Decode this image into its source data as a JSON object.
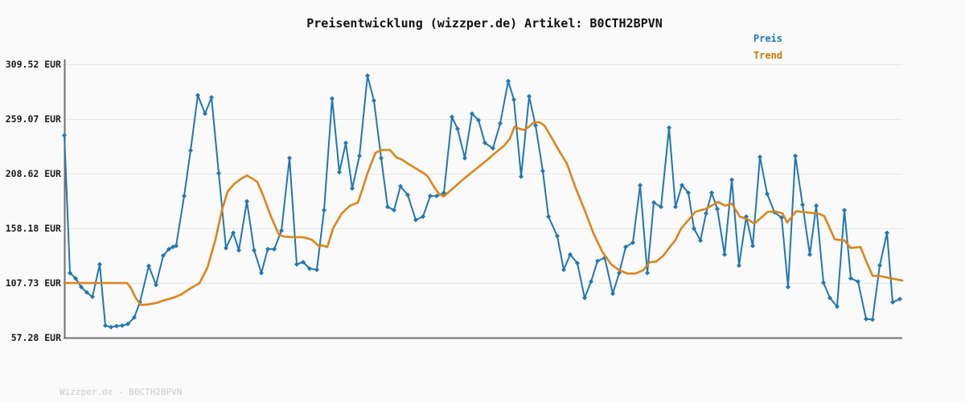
{
  "title": "Preisentwicklung (wizzper.de) Artikel: B0CTH2BPVN",
  "legend": {
    "preis_label": "Preis",
    "trend_label": "Trend"
  },
  "watermark": "Wizzper.de - B0CTH2BPVN",
  "colors": {
    "preis_line": "#1f77b4",
    "trend_line": "#df8418",
    "legend_preis_text": "#1778be",
    "legend_trend_text": "#c87800",
    "axis": "#707070",
    "grid": "#e6e6e6",
    "tick_label": "#1a1a1a",
    "background": "#fafafa",
    "watermark_text": "#cccccc"
  },
  "y_axis": {
    "tick_labels": [
      "309.52 EUR",
      "259.07 EUR",
      "208.62 EUR",
      "158.18 EUR",
      "107.73 EUR",
      "57.28 EUR"
    ],
    "tick_values": [
      309.52,
      259.07,
      208.62,
      158.18,
      107.73,
      57.28
    ]
  },
  "chart_data": {
    "type": "line",
    "title": "Preisentwicklung (wizzper.de) Artikel: B0CTH2BPVN",
    "xlabel": "",
    "ylabel": "",
    "ylim": [
      57.28,
      309.52
    ],
    "y_ticks": [
      309.52,
      259.07,
      208.62,
      158.18,
      107.73,
      57.28
    ],
    "grid": "horizontal",
    "legend_position": "outside-top-right",
    "x_note": "no x tick labels shown; x = pixel offset along axis",
    "series": [
      {
        "name": "Preis",
        "color": "#1f77b4",
        "marker": "diamond",
        "unit": "EUR",
        "points": [
          [
            0,
            244
          ],
          [
            7,
            117
          ],
          [
            14,
            112
          ],
          [
            21,
            104
          ],
          [
            28,
            99
          ],
          [
            35,
            95
          ],
          [
            44,
            125
          ],
          [
            51,
            68.5
          ],
          [
            58,
            67
          ],
          [
            65,
            68
          ],
          [
            72,
            68.5
          ],
          [
            79,
            70
          ],
          [
            87,
            76
          ],
          [
            94,
            90
          ],
          [
            105,
            123.5
          ],
          [
            114,
            106
          ],
          [
            123,
            133
          ],
          [
            130,
            139
          ],
          [
            135,
            141
          ],
          [
            139,
            142
          ],
          [
            149,
            188
          ],
          [
            157,
            230
          ],
          [
            166,
            281
          ],
          [
            175,
            264
          ],
          [
            183,
            279
          ],
          [
            192,
            209
          ],
          [
            201,
            140
          ],
          [
            210,
            154
          ],
          [
            217,
            138
          ],
          [
            227,
            183
          ],
          [
            236,
            138
          ],
          [
            245,
            117
          ],
          [
            253,
            139
          ],
          [
            261,
            139
          ],
          [
            270,
            156
          ],
          [
            280,
            223
          ],
          [
            289,
            125
          ],
          [
            297,
            127
          ],
          [
            305,
            121
          ],
          [
            314,
            120
          ],
          [
            323,
            175
          ],
          [
            333,
            278
          ],
          [
            342,
            210
          ],
          [
            350,
            237
          ],
          [
            358,
            195
          ],
          [
            367,
            225
          ],
          [
            377,
            299
          ],
          [
            385,
            276
          ],
          [
            394,
            223
          ],
          [
            402,
            178
          ],
          [
            410,
            175
          ],
          [
            418,
            197
          ],
          [
            427,
            189
          ],
          [
            437,
            166
          ],
          [
            446,
            169
          ],
          [
            455,
            188
          ],
          [
            463,
            188
          ],
          [
            472,
            191
          ],
          [
            482,
            261
          ],
          [
            489,
            250
          ],
          [
            498,
            223
          ],
          [
            507,
            264
          ],
          [
            515,
            258
          ],
          [
            523,
            237
          ],
          [
            533,
            232
          ],
          [
            542,
            255
          ],
          [
            552,
            294
          ],
          [
            559,
            277
          ],
          [
            568,
            206
          ],
          [
            578,
            280
          ],
          [
            586,
            253
          ],
          [
            595,
            211
          ],
          [
            602,
            169
          ],
          [
            613,
            151
          ],
          [
            621,
            120
          ],
          [
            629,
            134
          ],
          [
            638,
            126
          ],
          [
            647,
            94
          ],
          [
            655,
            109
          ],
          [
            663,
            128
          ],
          [
            672,
            131
          ],
          [
            682,
            98
          ],
          [
            690,
            117
          ],
          [
            698,
            141
          ],
          [
            707,
            145
          ],
          [
            716,
            198
          ],
          [
            725,
            117
          ],
          [
            733,
            182
          ],
          [
            742,
            178
          ],
          [
            752,
            251
          ],
          [
            760,
            178
          ],
          [
            768,
            198
          ],
          [
            776,
            191
          ],
          [
            783,
            158
          ],
          [
            791,
            147
          ],
          [
            798,
            172
          ],
          [
            805,
            191
          ],
          [
            812,
            176
          ],
          [
            821,
            134
          ],
          [
            830,
            203
          ],
          [
            839,
            124
          ],
          [
            848,
            169
          ],
          [
            856,
            142
          ],
          [
            865,
            224
          ],
          [
            874,
            190
          ],
          [
            883,
            173
          ],
          [
            892,
            168
          ],
          [
            900,
            104
          ],
          [
            909,
            225
          ],
          [
            918,
            180
          ],
          [
            927,
            134
          ],
          [
            935,
            179
          ],
          [
            944,
            108
          ],
          [
            952,
            94
          ],
          [
            961,
            86
          ],
          [
            970,
            175
          ],
          [
            978,
            112
          ],
          [
            987,
            109
          ],
          [
            997,
            74.5
          ],
          [
            1005,
            74
          ],
          [
            1014,
            124
          ],
          [
            1023,
            154
          ],
          [
            1030,
            90
          ],
          [
            1039,
            93
          ]
        ]
      },
      {
        "name": "Trend",
        "color": "#df8418",
        "marker": "none",
        "unit": "EUR",
        "points": [
          [
            0,
            107.73
          ],
          [
            40,
            107.73
          ],
          [
            78,
            107.73
          ],
          [
            83,
            103
          ],
          [
            88,
            95
          ],
          [
            95,
            87.5
          ],
          [
            105,
            88
          ],
          [
            115,
            89.5
          ],
          [
            125,
            92
          ],
          [
            135,
            94
          ],
          [
            145,
            97
          ],
          [
            155,
            102
          ],
          [
            168,
            107.5
          ],
          [
            178,
            122
          ],
          [
            188,
            148
          ],
          [
            196,
            175
          ],
          [
            203,
            192
          ],
          [
            211,
            199
          ],
          [
            220,
            204
          ],
          [
            227,
            207
          ],
          [
            234,
            204
          ],
          [
            240,
            201
          ],
          [
            247,
            189
          ],
          [
            257,
            169
          ],
          [
            267,
            152
          ],
          [
            274,
            150.5
          ],
          [
            285,
            150
          ],
          [
            295,
            150
          ],
          [
            300,
            149.5
          ],
          [
            308,
            147.5
          ],
          [
            317,
            141.5
          ],
          [
            320,
            142.5
          ],
          [
            327,
            141
          ],
          [
            334,
            158
          ],
          [
            345,
            172
          ],
          [
            355,
            179
          ],
          [
            365,
            182
          ],
          [
            371,
            195
          ],
          [
            377,
            209
          ],
          [
            387,
            228
          ],
          [
            395,
            230.5
          ],
          [
            405,
            230.5
          ],
          [
            413,
            223.5
          ],
          [
            420,
            221.5
          ],
          [
            427,
            218
          ],
          [
            437,
            213.5
          ],
          [
            447,
            209
          ],
          [
            452,
            206
          ],
          [
            460,
            196
          ],
          [
            466,
            190
          ],
          [
            472,
            187.6
          ],
          [
            477,
            191
          ],
          [
            487,
            197.5
          ],
          [
            497,
            204
          ],
          [
            507,
            210
          ],
          [
            517,
            216
          ],
          [
            527,
            222
          ],
          [
            537,
            228.5
          ],
          [
            547,
            234.5
          ],
          [
            554,
            241
          ],
          [
            560,
            252
          ],
          [
            566,
            250
          ],
          [
            572,
            249
          ],
          [
            578,
            252
          ],
          [
            584,
            256
          ],
          [
            591,
            256
          ],
          [
            597,
            253
          ],
          [
            605,
            243
          ],
          [
            615,
            230
          ],
          [
            625,
            218
          ],
          [
            635,
            197
          ],
          [
            647,
            175
          ],
          [
            658,
            153.5
          ],
          [
            669,
            136.5
          ],
          [
            680,
            125
          ],
          [
            690,
            119.5
          ],
          [
            700,
            116.5
          ],
          [
            710,
            116.5
          ],
          [
            720,
            119.5
          ],
          [
            728,
            127
          ],
          [
            736,
            127.5
          ],
          [
            745,
            133
          ],
          [
            753,
            141
          ],
          [
            760,
            147.5
          ],
          [
            767,
            158
          ],
          [
            785,
            173.5
          ],
          [
            797,
            176
          ],
          [
            813,
            182.5
          ],
          [
            822,
            179
          ],
          [
            830,
            181
          ],
          [
            840,
            169
          ],
          [
            850,
            166.5
          ],
          [
            858,
            162.5
          ],
          [
            875,
            173.5
          ],
          [
            885,
            173.5
          ],
          [
            893,
            172
          ],
          [
            899,
            163.5
          ],
          [
            910,
            174
          ],
          [
            928,
            172.5
          ],
          [
            937,
            172
          ],
          [
            945,
            169.5
          ],
          [
            958,
            148
          ],
          [
            970,
            147
          ],
          [
            978,
            140
          ],
          [
            990,
            141
          ],
          [
            998,
            126.5
          ],
          [
            1005,
            114.5
          ],
          [
            1015,
            114
          ],
          [
            1028,
            112
          ],
          [
            1042,
            110
          ]
        ]
      }
    ]
  }
}
